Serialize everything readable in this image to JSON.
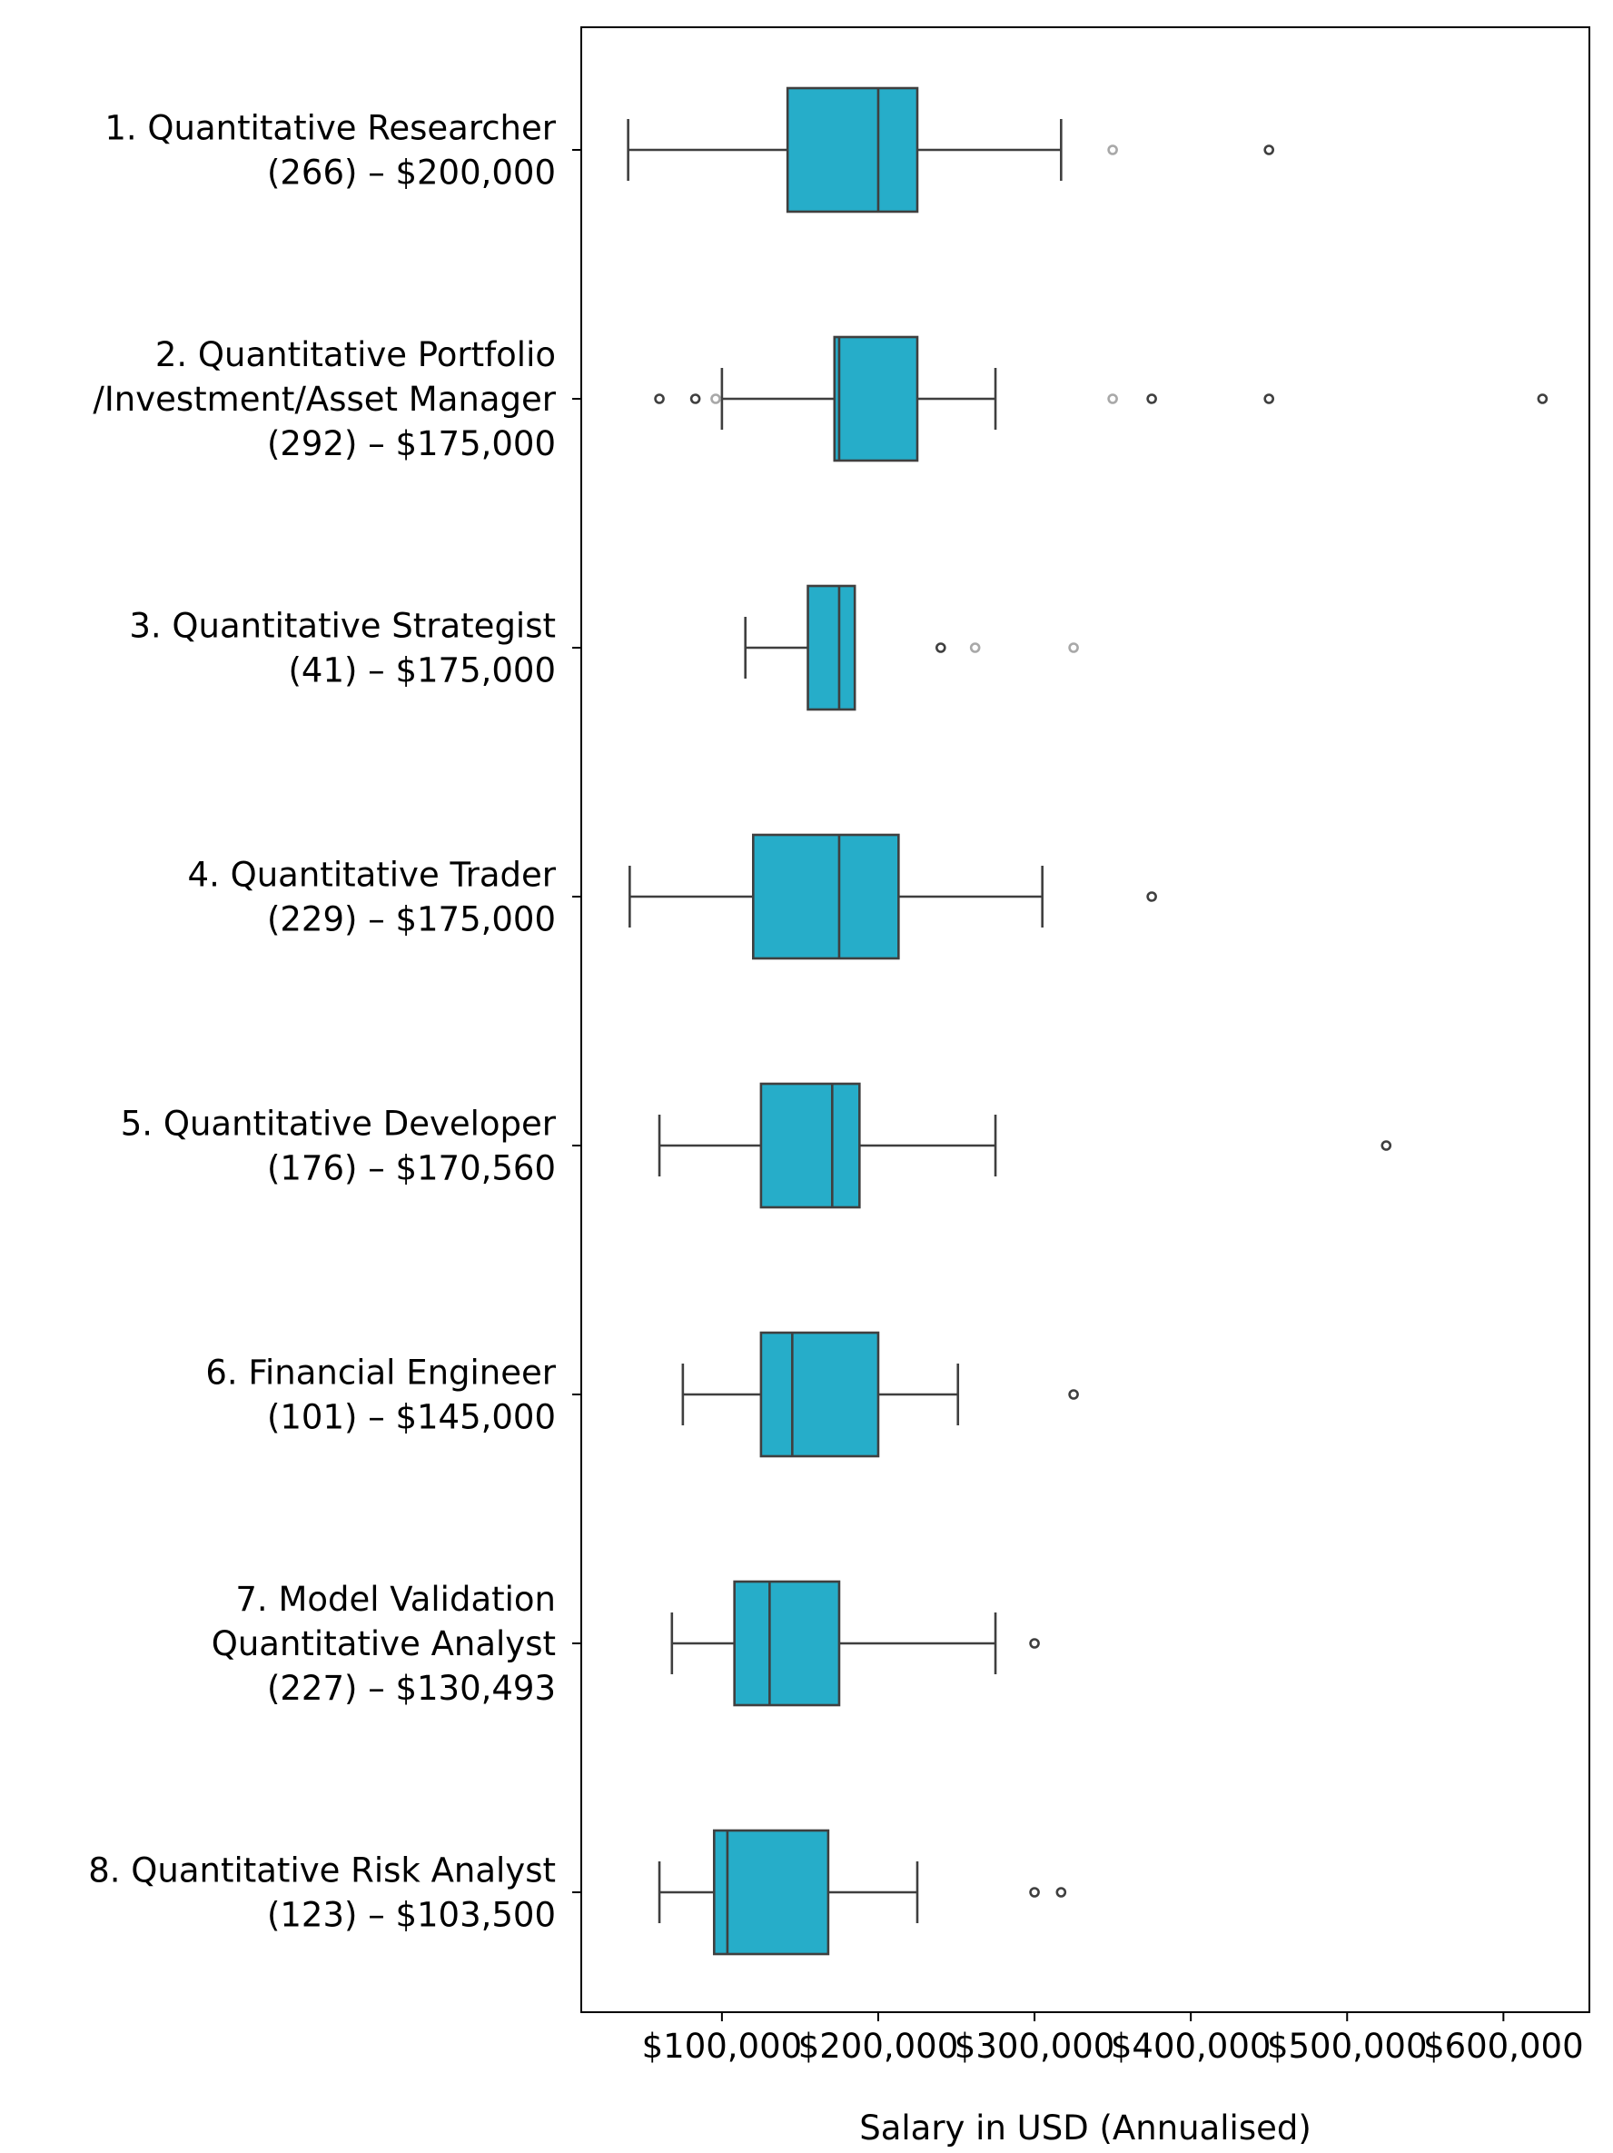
{
  "chart_data": {
    "type": "boxplot",
    "orientation": "horizontal",
    "xlabel": "Salary in USD (Annualised)",
    "xticks": [
      {
        "value": 100000,
        "label": "$100,000"
      },
      {
        "value": 200000,
        "label": "$200,000"
      },
      {
        "value": 300000,
        "label": "$300,000"
      },
      {
        "value": 400000,
        "label": "$400,000"
      },
      {
        "value": 500000,
        "label": "$500,000"
      },
      {
        "value": 600000,
        "label": "$600,000"
      }
    ],
    "xlim": [
      10000,
      655000
    ],
    "colors": {
      "box_fill": "#26ADC9",
      "line": "#3F3F3F",
      "outlier_dark": "#3F3F3F",
      "outlier_light": "#A8A8A8"
    },
    "categories": [
      {
        "label_lines": [
          "1. Quantitative Researcher",
          "(266) – $200,000"
        ],
        "whisker_low": 40000,
        "q1": 142000,
        "median": 200000,
        "q3": 225000,
        "whisker_high": 317000,
        "outliers": [
          {
            "value": 350000,
            "shade": "light"
          },
          {
            "value": 450000,
            "shade": "dark"
          }
        ]
      },
      {
        "label_lines": [
          "2. Quantitative Portfolio",
          "/Investment/Asset Manager",
          "(292) – $175,000"
        ],
        "whisker_low": 100000,
        "q1": 172000,
        "median": 175000,
        "q3": 225000,
        "whisker_high": 275000,
        "outliers": [
          {
            "value": 60000,
            "shade": "dark"
          },
          {
            "value": 83000,
            "shade": "dark"
          },
          {
            "value": 96000,
            "shade": "light"
          },
          {
            "value": 350000,
            "shade": "light"
          },
          {
            "value": 375000,
            "shade": "dark"
          },
          {
            "value": 450000,
            "shade": "dark"
          },
          {
            "value": 625000,
            "shade": "dark"
          }
        ]
      },
      {
        "label_lines": [
          "3. Quantitative Strategist",
          "(41) – $175,000"
        ],
        "whisker_low": 115000,
        "q1": 155000,
        "median": 175000,
        "q3": 185000,
        "whisker_high": 185000,
        "outliers": [
          {
            "value": 240000,
            "shade": "dark"
          },
          {
            "value": 262000,
            "shade": "light"
          },
          {
            "value": 325000,
            "shade": "light"
          }
        ]
      },
      {
        "label_lines": [
          "4. Quantitative Trader",
          "(229) – $175,000"
        ],
        "whisker_low": 41000,
        "q1": 120000,
        "median": 175000,
        "q3": 213000,
        "whisker_high": 305000,
        "outliers": [
          {
            "value": 375000,
            "shade": "dark"
          }
        ]
      },
      {
        "label_lines": [
          "5. Quantitative Developer",
          "(176) – $170,560"
        ],
        "whisker_low": 60000,
        "q1": 125000,
        "median": 170560,
        "q3": 188000,
        "whisker_high": 275000,
        "outliers": [
          {
            "value": 525000,
            "shade": "dark"
          }
        ]
      },
      {
        "label_lines": [
          "6. Financial Engineer",
          "(101) – $145,000"
        ],
        "whisker_low": 75000,
        "q1": 125000,
        "median": 145000,
        "q3": 200000,
        "whisker_high": 251000,
        "outliers": [
          {
            "value": 325000,
            "shade": "dark"
          }
        ]
      },
      {
        "label_lines": [
          "7. Model Validation",
          "Quantitative Analyst",
          "(227) – $130,493"
        ],
        "whisker_low": 68000,
        "q1": 108000,
        "median": 130493,
        "q3": 175000,
        "whisker_high": 275000,
        "outliers": [
          {
            "value": 300000,
            "shade": "dark"
          }
        ]
      },
      {
        "label_lines": [
          "8. Quantitative Risk Analyst",
          "(123) – $103,500"
        ],
        "whisker_low": 60000,
        "q1": 95000,
        "median": 103500,
        "q3": 168000,
        "whisker_high": 225000,
        "outliers": [
          {
            "value": 300000,
            "shade": "dark"
          },
          {
            "value": 317000,
            "shade": "dark"
          }
        ]
      }
    ]
  }
}
